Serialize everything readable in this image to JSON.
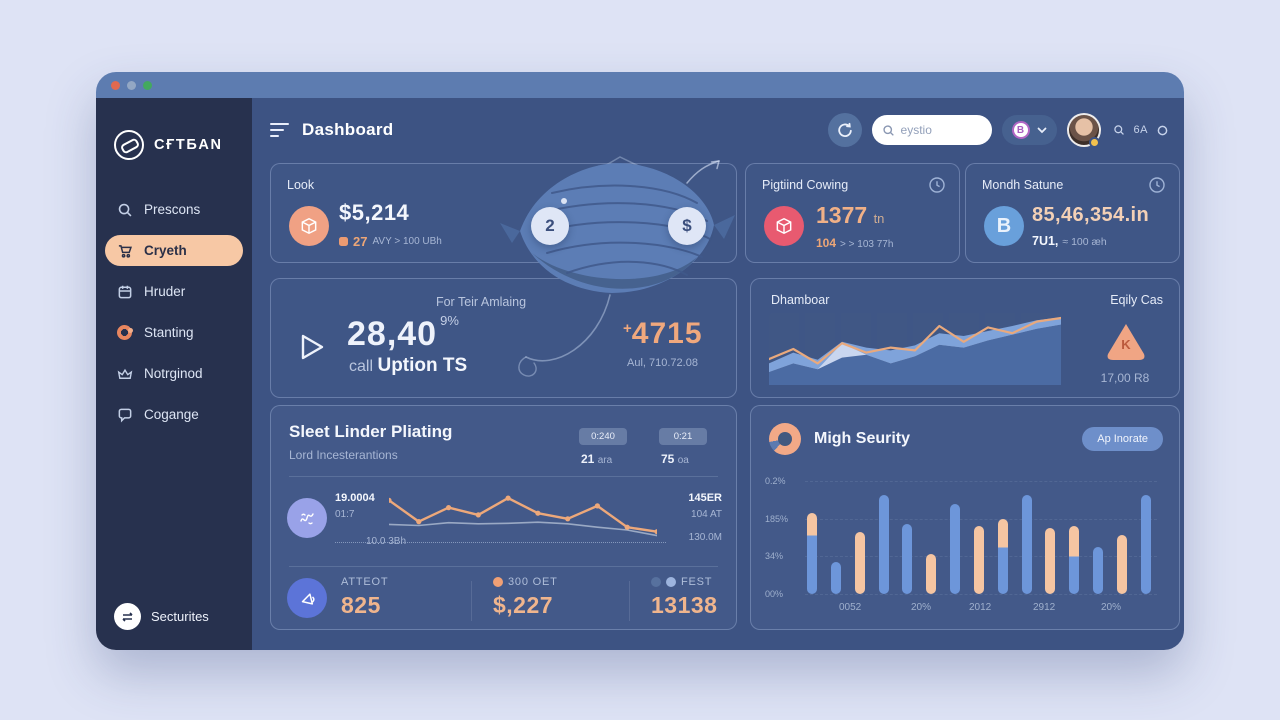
{
  "window": {
    "dot_colors": [
      "#e06950",
      "#93a7c4",
      "#43a95e"
    ]
  },
  "sidebar": {
    "logo_text": "CҒТБAN",
    "items": [
      {
        "label": "Prescons",
        "icon": "search-icon"
      },
      {
        "label": "Cryeth",
        "icon": "cart-icon",
        "active": true
      },
      {
        "label": "Hruder",
        "icon": "calendar-icon"
      },
      {
        "label": "Stanting",
        "icon": "donut-icon"
      },
      {
        "label": "Notrginod",
        "icon": "crown-icon"
      },
      {
        "label": "Cogange",
        "icon": "chat-icon"
      }
    ],
    "footer_label": "Secturites"
  },
  "header": {
    "title": "Dashboard",
    "search_placeholder": "eystio",
    "currency_symbol": "B",
    "mini_label": "6A"
  },
  "illustration": {
    "left_button": "2",
    "right_button": "$"
  },
  "cards": {
    "look": {
      "title": "Look",
      "value": "$5,214",
      "badge": "27",
      "sub": "AVY > 100 UBh"
    },
    "pigtiind": {
      "title": "Pigtiind Cowing",
      "value": "1377",
      "unit": "tn",
      "sub_strong": "104",
      "sub": "> > 103 77h"
    },
    "mondh": {
      "title": "Mondh Satune",
      "coin_letter": "B",
      "value": "85,46,354.in",
      "sub_strong": "7U1,",
      "sub": "≈ 100 æh"
    },
    "for_teir": {
      "title": "For Teir Amlaing",
      "value": "28,40",
      "sup": "9%",
      "unit_prefix": "call",
      "unit": "Uption TS",
      "delta_sign": "+",
      "delta": "4715",
      "delta_sub": "Aul, 710.72.08"
    },
    "dhamboar": {
      "title": "Dhamboar",
      "right_title": "Eqily Cas",
      "icon_letter": "K",
      "amount": "17,00 R8"
    },
    "sleet": {
      "title": "Sleet Linder Pliating",
      "subtitle": "Lord Incesterantions",
      "badges": [
        {
          "pill": "0:240",
          "sub": "21",
          "sub_small": "ara"
        },
        {
          "pill": "0:21",
          "sub": "75",
          "sub_small": "oa"
        }
      ],
      "left_top": "19.0004",
      "left_mid": "01:7",
      "axis_label": "10.0 3Bh",
      "right_top": "145ER",
      "right_mid": "104 AT",
      "right_bot": "130.0M",
      "stats": [
        {
          "label": "ATTEOT",
          "value": "825"
        },
        {
          "label": "300 OET",
          "value": "$,227"
        },
        {
          "label": "FEST",
          "value": "13138"
        }
      ]
    },
    "migh": {
      "title": "Migh Seurity",
      "button": "Ap Inorate"
    }
  },
  "chart_data": [
    {
      "id": "dhamboar-area",
      "type": "area",
      "legend": "none",
      "grid": "vertical-stripes",
      "x": [
        0,
        1,
        2,
        3,
        4,
        5,
        6,
        7,
        8,
        9,
        10,
        11,
        12
      ],
      "series": [
        {
          "name": "back-area",
          "color": "#7fa3da",
          "fill": true,
          "values": [
            30,
            45,
            35,
            60,
            52,
            48,
            55,
            72,
            68,
            75,
            82,
            90,
            94
          ]
        },
        {
          "name": "highlight-peak",
          "color": "#c9d6ef",
          "fill": true,
          "values": [
            18,
            30,
            22,
            58,
            42,
            30,
            40,
            56,
            52,
            62,
            70,
            78,
            84
          ]
        },
        {
          "name": "front-area",
          "color": "#4b6ba3",
          "fill": true,
          "values": [
            18,
            30,
            22,
            38,
            42,
            30,
            40,
            56,
            52,
            62,
            70,
            78,
            84
          ]
        },
        {
          "name": "trend-line",
          "color": "#e9a97d",
          "fill": false,
          "values": [
            36,
            50,
            30,
            58,
            45,
            52,
            48,
            82,
            60,
            80,
            72,
            88,
            93
          ]
        }
      ]
    },
    {
      "id": "sleet-line",
      "type": "line",
      "legend": "none",
      "grid": "off",
      "x": [
        0,
        1,
        2,
        3,
        4,
        5,
        6,
        7,
        8,
        9
      ],
      "series": [
        {
          "name": "secondary",
          "color": "#9aa9c4",
          "markers": false,
          "values": [
            35,
            33,
            38,
            36,
            37,
            39,
            36,
            30,
            25,
            15
          ]
        },
        {
          "name": "primary",
          "color": "#eda87a",
          "markers": true,
          "values": [
            78,
            40,
            65,
            52,
            82,
            55,
            45,
            68,
            30,
            22
          ]
        }
      ]
    },
    {
      "id": "migh-bars",
      "type": "bar",
      "legend": "none",
      "y_ticks": [
        "0.2%",
        "185%",
        "34%",
        "00%"
      ],
      "x_ticks": [
        "0052",
        "20%",
        "2012",
        "2912",
        "20%"
      ],
      "colors": {
        "blue": "#6d96da",
        "peach": "#f5c5a2"
      },
      "bars": [
        {
          "h": 72,
          "c": "mix",
          "split": 28
        },
        {
          "h": 28,
          "c": "blue"
        },
        {
          "h": 55,
          "c": "peach"
        },
        {
          "h": 88,
          "c": "blue"
        },
        {
          "h": 62,
          "c": "blue"
        },
        {
          "h": 35,
          "c": "peach"
        },
        {
          "h": 80,
          "c": "blue"
        },
        {
          "h": 60,
          "c": "peach"
        },
        {
          "h": 66,
          "c": "mix",
          "split": 38
        },
        {
          "h": 88,
          "c": "blue"
        },
        {
          "h": 58,
          "c": "peach"
        },
        {
          "h": 60,
          "c": "mix",
          "split": 45
        },
        {
          "h": 42,
          "c": "blue"
        },
        {
          "h": 52,
          "c": "peach"
        },
        {
          "h": 88,
          "c": "blue"
        }
      ]
    }
  ]
}
